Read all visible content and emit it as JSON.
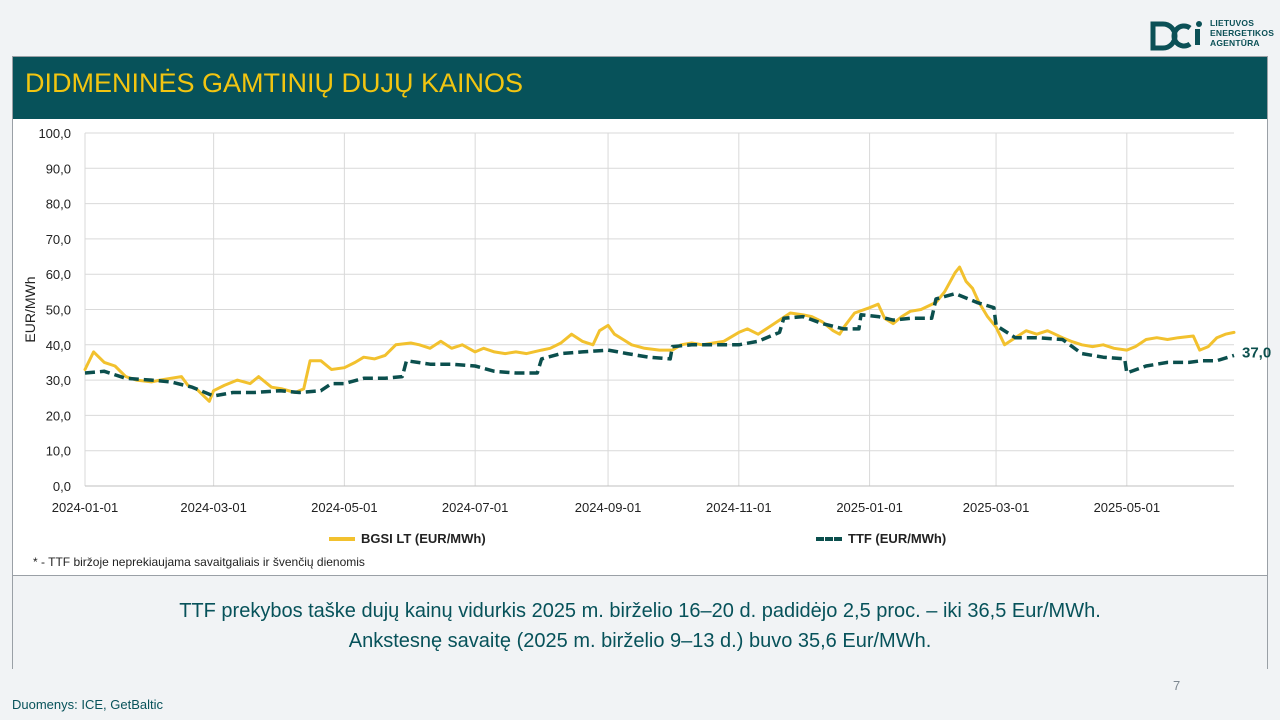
{
  "header": {
    "title": "DIDMENINĖS GAMTINIŲ DUJŲ KAINOS"
  },
  "logo": {
    "icon": "lea-logo-icon",
    "line1": "LIETUVOS",
    "line2": "ENERGETIKOS",
    "line3": "AGENTŪRA"
  },
  "chart_data": {
    "type": "line",
    "ylabel": "EUR/MWh",
    "xlabel": "",
    "ylim": [
      0,
      100
    ],
    "y_ticks": [
      "0,0",
      "10,0",
      "20,0",
      "30,0",
      "40,0",
      "50,0",
      "60,0",
      "70,0",
      "80,0",
      "90,0",
      "100,0"
    ],
    "x_range": [
      "2024-01-01",
      "2025-06-20"
    ],
    "x_ticks": [
      "2024-01-01",
      "2024-03-01",
      "2024-05-01",
      "2024-07-01",
      "2024-09-01",
      "2024-11-01",
      "2025-01-01",
      "2025-03-01",
      "2025-05-01"
    ],
    "grid": true,
    "legend_position": "bottom",
    "end_label": "37,0",
    "series": [
      {
        "name": "BGSI LT (EUR/MWh)",
        "color": "#f2c12e",
        "style": "solid",
        "points": [
          [
            "2024-01-01",
            33.0
          ],
          [
            "2024-01-05",
            38.0
          ],
          [
            "2024-01-10",
            35.0
          ],
          [
            "2024-01-15",
            34.0
          ],
          [
            "2024-01-20",
            31.0
          ],
          [
            "2024-01-25",
            30.0
          ],
          [
            "2024-02-01",
            29.5
          ],
          [
            "2024-02-05",
            30.0
          ],
          [
            "2024-02-10",
            30.5
          ],
          [
            "2024-02-15",
            31.0
          ],
          [
            "2024-02-18",
            28.5
          ],
          [
            "2024-02-22",
            27.5
          ],
          [
            "2024-02-28",
            24.0
          ],
          [
            "2024-03-01",
            27.0
          ],
          [
            "2024-03-06",
            28.5
          ],
          [
            "2024-03-12",
            30.0
          ],
          [
            "2024-03-18",
            29.0
          ],
          [
            "2024-03-22",
            31.0
          ],
          [
            "2024-03-28",
            28.0
          ],
          [
            "2024-04-02",
            27.5
          ],
          [
            "2024-04-08",
            26.5
          ],
          [
            "2024-04-12",
            27.5
          ],
          [
            "2024-04-15",
            35.5
          ],
          [
            "2024-04-20",
            35.5
          ],
          [
            "2024-04-25",
            33.0
          ],
          [
            "2024-05-01",
            33.5
          ],
          [
            "2024-05-06",
            35.0
          ],
          [
            "2024-05-10",
            36.5
          ],
          [
            "2024-05-15",
            36.0
          ],
          [
            "2024-05-20",
            37.0
          ],
          [
            "2024-05-25",
            40.0
          ],
          [
            "2024-06-01",
            40.5
          ],
          [
            "2024-06-05",
            40.0
          ],
          [
            "2024-06-10",
            39.0
          ],
          [
            "2024-06-15",
            41.0
          ],
          [
            "2024-06-20",
            39.0
          ],
          [
            "2024-06-25",
            40.0
          ],
          [
            "2024-07-01",
            38.0
          ],
          [
            "2024-07-05",
            39.0
          ],
          [
            "2024-07-10",
            38.0
          ],
          [
            "2024-07-15",
            37.5
          ],
          [
            "2024-07-20",
            38.0
          ],
          [
            "2024-07-25",
            37.5
          ],
          [
            "2024-08-01",
            38.5
          ],
          [
            "2024-08-05",
            39.0
          ],
          [
            "2024-08-10",
            40.5
          ],
          [
            "2024-08-15",
            43.0
          ],
          [
            "2024-08-20",
            41.0
          ],
          [
            "2024-08-25",
            40.0
          ],
          [
            "2024-08-28",
            44.0
          ],
          [
            "2024-09-01",
            45.5
          ],
          [
            "2024-09-04",
            43.0
          ],
          [
            "2024-09-08",
            41.5
          ],
          [
            "2024-09-12",
            40.0
          ],
          [
            "2024-09-18",
            39.0
          ],
          [
            "2024-09-25",
            38.5
          ],
          [
            "2024-10-01",
            38.5
          ],
          [
            "2024-10-05",
            40.0
          ],
          [
            "2024-10-10",
            40.5
          ],
          [
            "2024-10-15",
            40.0
          ],
          [
            "2024-10-20",
            40.5
          ],
          [
            "2024-10-25",
            41.0
          ],
          [
            "2024-11-01",
            43.5
          ],
          [
            "2024-11-05",
            44.5
          ],
          [
            "2024-11-10",
            43.0
          ],
          [
            "2024-11-15",
            45.0
          ],
          [
            "2024-11-20",
            47.0
          ],
          [
            "2024-11-25",
            49.0
          ],
          [
            "2024-12-01",
            48.5
          ],
          [
            "2024-12-05",
            48.0
          ],
          [
            "2024-12-10",
            46.5
          ],
          [
            "2024-12-15",
            44.0
          ],
          [
            "2024-12-18",
            43.0
          ],
          [
            "2024-12-20",
            45.0
          ],
          [
            "2024-12-25",
            49.0
          ],
          [
            "2025-01-01",
            50.5
          ],
          [
            "2025-01-05",
            51.5
          ],
          [
            "2025-01-08",
            47.5
          ],
          [
            "2025-01-12",
            46.0
          ],
          [
            "2025-01-16",
            48.0
          ],
          [
            "2025-01-20",
            49.5
          ],
          [
            "2025-01-25",
            50.0
          ],
          [
            "2025-02-01",
            52.0
          ],
          [
            "2025-02-05",
            55.0
          ],
          [
            "2025-02-10",
            60.5
          ],
          [
            "2025-02-12",
            62.0
          ],
          [
            "2025-02-15",
            58.0
          ],
          [
            "2025-02-18",
            56.0
          ],
          [
            "2025-02-21",
            52.0
          ],
          [
            "2025-02-25",
            48.0
          ],
          [
            "2025-03-01",
            45.0
          ],
          [
            "2025-03-05",
            40.0
          ],
          [
            "2025-03-10",
            42.0
          ],
          [
            "2025-03-15",
            44.0
          ],
          [
            "2025-03-20",
            43.0
          ],
          [
            "2025-03-25",
            44.0
          ],
          [
            "2025-04-01",
            42.0
          ],
          [
            "2025-04-05",
            41.0
          ],
          [
            "2025-04-10",
            40.0
          ],
          [
            "2025-04-15",
            39.5
          ],
          [
            "2025-04-20",
            40.0
          ],
          [
            "2025-04-25",
            39.0
          ],
          [
            "2025-05-01",
            38.5
          ],
          [
            "2025-05-05",
            39.5
          ],
          [
            "2025-05-10",
            41.5
          ],
          [
            "2025-05-15",
            42.0
          ],
          [
            "2025-05-20",
            41.5
          ],
          [
            "2025-05-25",
            42.0
          ],
          [
            "2025-06-01",
            42.5
          ],
          [
            "2025-06-04",
            38.5
          ],
          [
            "2025-06-08",
            39.5
          ],
          [
            "2025-06-12",
            42.0
          ],
          [
            "2025-06-16",
            43.0
          ],
          [
            "2025-06-20",
            43.5
          ]
        ]
      },
      {
        "name": "TTF (EUR/MWh)",
        "color": "#0b4f4d",
        "style": "dashed",
        "points": [
          [
            "2024-01-01",
            32.0
          ],
          [
            "2024-01-10",
            32.5
          ],
          [
            "2024-01-20",
            30.5
          ],
          [
            "2024-02-01",
            30.0
          ],
          [
            "2024-02-10",
            29.5
          ],
          [
            "2024-02-20",
            28.0
          ],
          [
            "2024-03-01",
            25.5
          ],
          [
            "2024-03-10",
            26.5
          ],
          [
            "2024-03-20",
            26.5
          ],
          [
            "2024-04-01",
            27.0
          ],
          [
            "2024-04-10",
            26.5
          ],
          [
            "2024-04-20",
            27.0
          ],
          [
            "2024-04-25",
            29.0
          ],
          [
            "2024-05-01",
            29.0
          ],
          [
            "2024-05-10",
            30.5
          ],
          [
            "2024-05-20",
            30.5
          ],
          [
            "2024-05-28",
            31.0
          ],
          [
            "2024-05-30",
            35.5
          ],
          [
            "2024-06-10",
            34.5
          ],
          [
            "2024-06-20",
            34.5
          ],
          [
            "2024-07-01",
            34.0
          ],
          [
            "2024-07-10",
            32.5
          ],
          [
            "2024-07-20",
            32.0
          ],
          [
            "2024-07-30",
            32.0
          ],
          [
            "2024-08-01",
            36.0
          ],
          [
            "2024-08-10",
            37.5
          ],
          [
            "2024-08-20",
            38.0
          ],
          [
            "2024-09-01",
            38.5
          ],
          [
            "2024-09-10",
            37.5
          ],
          [
            "2024-09-20",
            36.5
          ],
          [
            "2024-09-30",
            36.0
          ],
          [
            "2024-10-01",
            39.5
          ],
          [
            "2024-10-10",
            40.0
          ],
          [
            "2024-10-20",
            40.0
          ],
          [
            "2024-11-01",
            40.0
          ],
          [
            "2024-11-10",
            41.0
          ],
          [
            "2024-11-20",
            43.5
          ],
          [
            "2024-11-22",
            47.5
          ],
          [
            "2024-12-01",
            48.0
          ],
          [
            "2024-12-10",
            46.0
          ],
          [
            "2024-12-20",
            44.5
          ],
          [
            "2024-12-27",
            44.5
          ],
          [
            "2024-12-28",
            48.5
          ],
          [
            "2025-01-05",
            48.0
          ],
          [
            "2025-01-12",
            47.0
          ],
          [
            "2025-01-20",
            47.5
          ],
          [
            "2025-01-30",
            47.5
          ],
          [
            "2025-02-01",
            53.0
          ],
          [
            "2025-02-10",
            54.5
          ],
          [
            "2025-02-20",
            52.0
          ],
          [
            "2025-02-28",
            50.5
          ],
          [
            "2025-03-01",
            45.5
          ],
          [
            "2025-03-10",
            42.0
          ],
          [
            "2025-03-20",
            42.0
          ],
          [
            "2025-04-01",
            41.5
          ],
          [
            "2025-04-10",
            37.5
          ],
          [
            "2025-04-20",
            36.5
          ],
          [
            "2025-04-30",
            36.0
          ],
          [
            "2025-05-01",
            32.0
          ],
          [
            "2025-05-10",
            34.0
          ],
          [
            "2025-05-20",
            35.0
          ],
          [
            "2025-05-30",
            35.0
          ],
          [
            "2025-06-05",
            35.5
          ],
          [
            "2025-06-12",
            35.5
          ],
          [
            "2025-06-20",
            37.0
          ]
        ]
      }
    ]
  },
  "footnote": "* - TTF biržoje neprekiaujama savaitgaliais ir švenčių dienomis",
  "summary": {
    "line1": "TTF prekybos taške dujų kainų vidurkis 2025 m. birželio 16–20 d. padidėjo 2,5 proc. – iki 36,5 Eur/MWh.",
    "line2": "Ankstesnę savaitę (2025 m. birželio 9–13 d.) buvo 35,6 Eur/MWh."
  },
  "page_number": "7",
  "source": "Duomenys: ICE, GetBaltic"
}
